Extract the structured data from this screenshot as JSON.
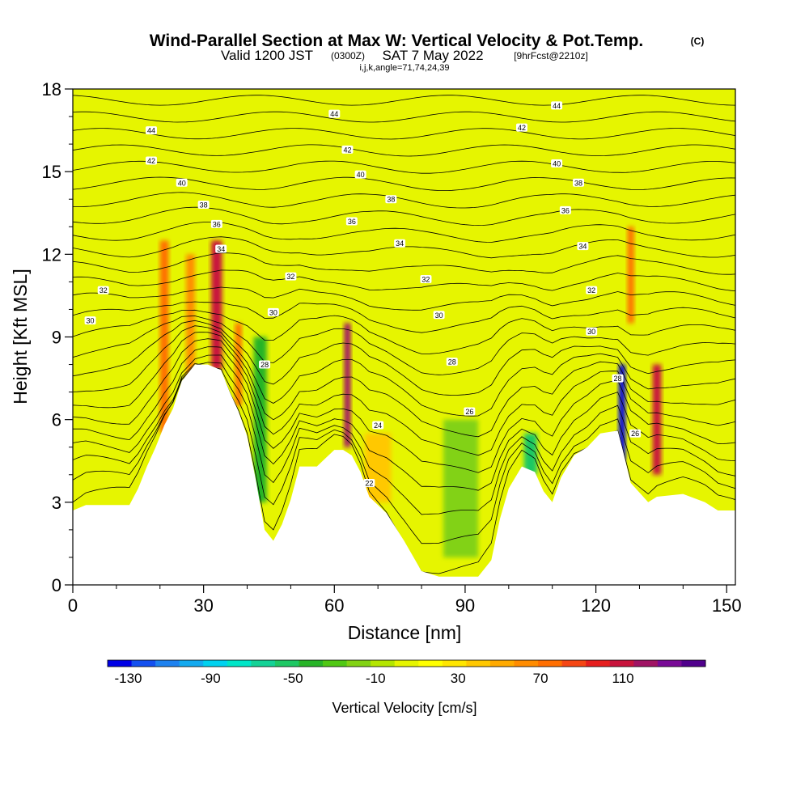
{
  "title": {
    "main": "Wind-Parallel Section at Max W: Vertical Velocity & Pot.Temp.",
    "copyright": "(C)",
    "valid_prefix": "Valid 1200 JST",
    "valid_utc": "(0300Z)",
    "valid_date": "SAT 7 May 2022",
    "forecast": "[9hrFcst@2210z]",
    "params": "i,j,k,angle=71,74,24,39"
  },
  "chart_data": {
    "type": "heatmap",
    "xlabel": "Distance [nm]",
    "ylabel": "Height [Kft MSL]",
    "xlim": [
      0,
      152
    ],
    "ylim": [
      0,
      18
    ],
    "x_ticks": [
      0,
      30,
      60,
      90,
      120,
      150
    ],
    "y_ticks": [
      0,
      3,
      6,
      9,
      12,
      15,
      18
    ],
    "terrain_profile": [
      [
        0,
        2.7
      ],
      [
        3,
        2.9
      ],
      [
        13,
        2.9
      ],
      [
        15,
        3.5
      ],
      [
        17,
        4.3
      ],
      [
        19,
        5.0
      ],
      [
        21,
        5.8
      ],
      [
        23,
        6.4
      ],
      [
        25,
        7.4
      ],
      [
        28,
        8.0
      ],
      [
        31,
        8.0
      ],
      [
        34,
        7.8
      ],
      [
        36,
        7.0
      ],
      [
        38,
        6.3
      ],
      [
        40,
        5.4
      ],
      [
        42,
        3.8
      ],
      [
        44,
        2.0
      ],
      [
        46,
        1.6
      ],
      [
        48,
        2.2
      ],
      [
        50,
        3.1
      ],
      [
        52,
        4.3
      ],
      [
        56,
        4.3
      ],
      [
        58,
        4.6
      ],
      [
        60,
        4.9
      ],
      [
        62,
        4.9
      ],
      [
        64,
        4.7
      ],
      [
        66,
        4.1
      ],
      [
        68,
        3.2
      ],
      [
        72,
        2.6
      ],
      [
        76,
        1.6
      ],
      [
        80,
        0.5
      ],
      [
        84,
        0.3
      ],
      [
        93,
        0.3
      ],
      [
        96,
        0.9
      ],
      [
        98,
        2.4
      ],
      [
        100,
        3.5
      ],
      [
        103,
        4.3
      ],
      [
        106,
        4.1
      ],
      [
        108,
        3.4
      ],
      [
        110,
        3.0
      ],
      [
        112,
        3.9
      ],
      [
        115,
        4.7
      ],
      [
        118,
        5.0
      ],
      [
        121,
        5.5
      ],
      [
        125,
        5.6
      ],
      [
        126,
        5.0
      ],
      [
        128,
        3.7
      ],
      [
        132,
        3.0
      ],
      [
        134,
        3.2
      ],
      [
        140,
        3.3
      ],
      [
        145,
        3.0
      ],
      [
        148,
        2.7
      ],
      [
        152,
        2.7
      ]
    ],
    "vertical_velocity_features": [
      {
        "x": 21,
        "z_bottom": 5.5,
        "z_top": 12.5,
        "w": 75,
        "width_nm": 2
      },
      {
        "x": 27,
        "z_bottom": 7.5,
        "z_top": 12.0,
        "w": 60,
        "width_nm": 2
      },
      {
        "x": 33,
        "z_bottom": 7.8,
        "z_top": 12.5,
        "w": 110,
        "width_nm": 2.5
      },
      {
        "x": 38,
        "z_bottom": 6.5,
        "z_top": 9.5,
        "w": 70,
        "width_nm": 1.5
      },
      {
        "x": 63,
        "z_bottom": 5.0,
        "z_top": 9.5,
        "w": 120,
        "width_nm": 1.5
      },
      {
        "x": 70,
        "z_bottom": 3.0,
        "z_top": 5.5,
        "w": 45,
        "width_nm": 6
      },
      {
        "x": 126,
        "z_bottom": 4.5,
        "z_top": 8.0,
        "w": -130,
        "width_nm": 1.5
      },
      {
        "x": 128,
        "z_bottom": 9.5,
        "z_top": 13.0,
        "w": 80,
        "width_nm": 1.5
      },
      {
        "x": 134,
        "z_bottom": 4.0,
        "z_top": 8.0,
        "w": 110,
        "width_nm": 2
      },
      {
        "x": 43,
        "z_bottom": 3.0,
        "z_top": 9.0,
        "w": -40,
        "width_nm": 3
      },
      {
        "x": 89,
        "z_bottom": 1.0,
        "z_top": 6.0,
        "w": -20,
        "width_nm": 8
      },
      {
        "x": 105,
        "z_bottom": 4.0,
        "z_top": 5.5,
        "w": -50,
        "width_nm": 3
      }
    ],
    "theta_contour_labels": [
      {
        "value": "44",
        "x": 18,
        "z": 16.5
      },
      {
        "value": "42",
        "x": 18,
        "z": 15.4
      },
      {
        "value": "40",
        "x": 25,
        "z": 14.6
      },
      {
        "value": "38",
        "x": 30,
        "z": 13.8
      },
      {
        "value": "36",
        "x": 33,
        "z": 13.1
      },
      {
        "value": "34",
        "x": 34,
        "z": 12.2
      },
      {
        "value": "32",
        "x": 7,
        "z": 10.7
      },
      {
        "value": "30",
        "x": 4,
        "z": 9.6
      },
      {
        "value": "32",
        "x": 50,
        "z": 11.2
      },
      {
        "value": "30",
        "x": 46,
        "z": 9.9
      },
      {
        "value": "28",
        "x": 44,
        "z": 8.0
      },
      {
        "value": "44",
        "x": 60,
        "z": 17.1
      },
      {
        "value": "42",
        "x": 63,
        "z": 15.8
      },
      {
        "value": "40",
        "x": 66,
        "z": 14.9
      },
      {
        "value": "38",
        "x": 73,
        "z": 14.0
      },
      {
        "value": "36",
        "x": 64,
        "z": 13.2
      },
      {
        "value": "34",
        "x": 75,
        "z": 12.4
      },
      {
        "value": "32",
        "x": 81,
        "z": 11.1
      },
      {
        "value": "30",
        "x": 84,
        "z": 9.8
      },
      {
        "value": "28",
        "x": 87,
        "z": 8.1
      },
      {
        "value": "26",
        "x": 91,
        "z": 6.3
      },
      {
        "value": "24",
        "x": 70,
        "z": 5.8
      },
      {
        "value": "22",
        "x": 68,
        "z": 3.7
      },
      {
        "value": "44",
        "x": 111,
        "z": 17.4
      },
      {
        "value": "42",
        "x": 103,
        "z": 16.6
      },
      {
        "value": "40",
        "x": 111,
        "z": 15.3
      },
      {
        "value": "38",
        "x": 116,
        "z": 14.6
      },
      {
        "value": "36",
        "x": 113,
        "z": 13.6
      },
      {
        "value": "34",
        "x": 117,
        "z": 12.3
      },
      {
        "value": "32",
        "x": 119,
        "z": 10.7
      },
      {
        "value": "30",
        "x": 119,
        "z": 9.2
      },
      {
        "value": "28",
        "x": 125,
        "z": 7.5
      },
      {
        "value": "26",
        "x": 129,
        "z": 5.5
      }
    ],
    "colorbar": {
      "title": "Vertical Velocity [cm/s]",
      "tick_labels": [
        "-130",
        "-90",
        "-50",
        "-10",
        "30",
        "70",
        "110"
      ],
      "min": -140,
      "max": 150,
      "colors": [
        "#0000e6",
        "#1450f0",
        "#1e82f0",
        "#14aaf0",
        "#00d2f0",
        "#00e6c8",
        "#14d296",
        "#1ec864",
        "#28b428",
        "#50c814",
        "#82d214",
        "#b4e600",
        "#e6f500",
        "#ffff00",
        "#ffe600",
        "#ffc800",
        "#ffaa00",
        "#ff8c00",
        "#ff6e00",
        "#f54614",
        "#e61e1e",
        "#c8143c",
        "#a01464",
        "#780a96",
        "#50008c"
      ]
    }
  }
}
